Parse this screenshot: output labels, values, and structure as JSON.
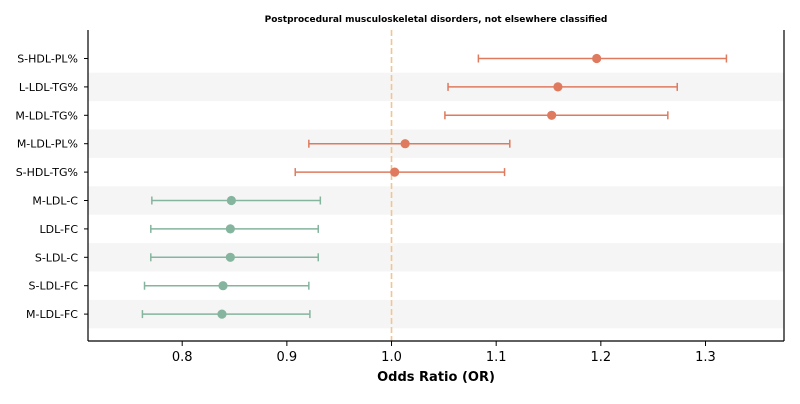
{
  "chart_data": {
    "type": "forest",
    "title": "Postprocedural musculoskeletal disorders, not elsewhere classified",
    "xlabel": "Odds Ratio (OR)",
    "ylabel": "",
    "xlim": [
      0.71,
      1.375
    ],
    "xticks": [
      0.8,
      0.9,
      1.0,
      1.1,
      1.2,
      1.3
    ],
    "xtick_labels": [
      "0.8",
      "0.9",
      "1.0",
      "1.1",
      "1.2",
      "1.3"
    ],
    "reference_line": 1.0,
    "reference_line_color": "#f5c48e",
    "colors": {
      "positive": "#df7a5e",
      "negative": "#85b59e",
      "band": "#f5f5f5"
    },
    "grid": false,
    "alternating_row_bands": true,
    "rows": [
      {
        "label": "S-HDL-PL%",
        "or": 1.196,
        "lower": 1.083,
        "upper": 1.32
      },
      {
        "label": "L-LDL-TG%",
        "or": 1.159,
        "lower": 1.054,
        "upper": 1.273
      },
      {
        "label": "M-LDL-TG%",
        "or": 1.153,
        "lower": 1.051,
        "upper": 1.264
      },
      {
        "label": "M-LDL-PL%",
        "or": 1.013,
        "lower": 0.921,
        "upper": 1.113
      },
      {
        "label": "S-HDL-TG%",
        "or": 1.003,
        "lower": 0.908,
        "upper": 1.108
      },
      {
        "label": "M-LDL-C",
        "or": 0.847,
        "lower": 0.771,
        "upper": 0.932
      },
      {
        "label": "LDL-FC",
        "or": 0.846,
        "lower": 0.77,
        "upper": 0.93
      },
      {
        "label": "S-LDL-C",
        "or": 0.846,
        "lower": 0.77,
        "upper": 0.93
      },
      {
        "label": "S-LDL-FC",
        "or": 0.839,
        "lower": 0.764,
        "upper": 0.921
      },
      {
        "label": "M-LDL-FC",
        "or": 0.838,
        "lower": 0.762,
        "upper": 0.922
      }
    ]
  }
}
